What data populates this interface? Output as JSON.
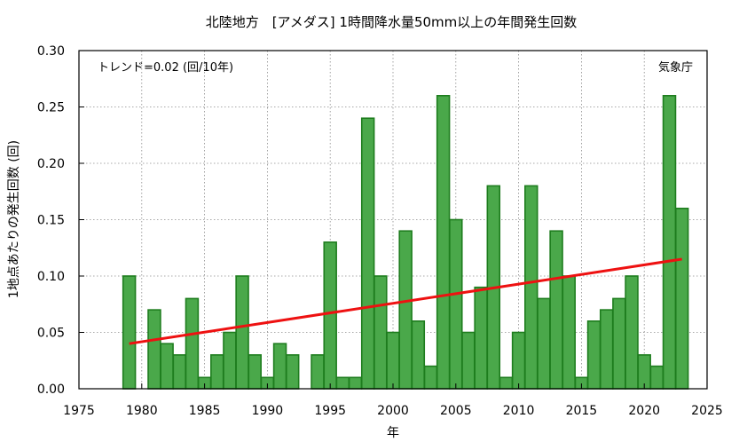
{
  "chart_data": {
    "type": "bar",
    "title": "北陸地方　[アメダス] 1時間降水量50mm以上の年間発生回数",
    "xlabel": "年",
    "ylabel": "1地点あたりの発生回数 (回)",
    "xlim": [
      1975,
      2025
    ],
    "ylim": [
      0,
      0.3
    ],
    "x_ticks": [
      1975,
      1980,
      1985,
      1990,
      1995,
      2000,
      2005,
      2010,
      2015,
      2020,
      2025
    ],
    "y_ticks": [
      "0.00",
      "0.05",
      "0.10",
      "0.15",
      "0.20",
      "0.25",
      "0.30"
    ],
    "grid": true,
    "x": [
      1979,
      1980,
      1981,
      1982,
      1983,
      1984,
      1985,
      1986,
      1987,
      1988,
      1989,
      1990,
      1991,
      1992,
      1993,
      1994,
      1995,
      1996,
      1997,
      1998,
      1999,
      2000,
      2001,
      2002,
      2003,
      2004,
      2005,
      2006,
      2007,
      2008,
      2009,
      2010,
      2011,
      2012,
      2013,
      2014,
      2015,
      2016,
      2017,
      2018,
      2019,
      2020,
      2021,
      2022,
      2023
    ],
    "values": [
      0.1,
      0.0,
      0.07,
      0.04,
      0.03,
      0.08,
      0.01,
      0.03,
      0.05,
      0.1,
      0.03,
      0.01,
      0.04,
      0.03,
      0.0,
      0.03,
      0.13,
      0.01,
      0.01,
      0.24,
      0.1,
      0.05,
      0.14,
      0.06,
      0.02,
      0.26,
      0.15,
      0.05,
      0.09,
      0.18,
      0.01,
      0.05,
      0.18,
      0.08,
      0.14,
      0.1,
      0.01,
      0.06,
      0.07,
      0.08,
      0.1,
      0.03,
      0.02,
      0.26,
      0.16
    ],
    "bar_color": "#4aa84a",
    "bar_edge_color": "#1e7d1e",
    "trend": {
      "label": "トレンド=0.02 (回/10年)",
      "start": [
        1979,
        0.04
      ],
      "end": [
        2023,
        0.115
      ],
      "color": "#ee1111"
    },
    "source_label": "気象庁"
  }
}
